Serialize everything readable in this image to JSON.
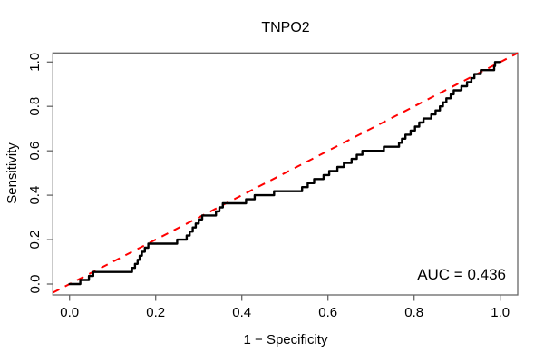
{
  "chart_data": {
    "type": "line",
    "subtype": "ROC step curve",
    "title": "TNPO2",
    "xlabel": "1 − Specificity",
    "ylabel": "Sensitivity",
    "annotation": "AUC = 0.436",
    "auc": 0.436,
    "xlim": [
      0,
      1
    ],
    "ylim": [
      0,
      1
    ],
    "grid": false,
    "legend": "none",
    "x_ticks": [
      "0.0",
      "0.2",
      "0.4",
      "0.6",
      "0.8",
      "1.0"
    ],
    "x_tick_values": [
      0,
      0.2,
      0.4,
      0.6,
      0.8,
      1.0
    ],
    "y_ticks": [
      "0.0",
      "0.2",
      "0.4",
      "0.6",
      "0.8",
      "1.0"
    ],
    "y_tick_values": [
      0,
      0.2,
      0.4,
      0.6,
      0.8,
      1.0
    ],
    "colors": {
      "curve": "#000000",
      "diagonal": "#ff0000",
      "axis": "#666666",
      "text": "#000000",
      "background": "#ffffff"
    },
    "series": [
      {
        "name": "ROC curve",
        "style": "solid-step",
        "color": "#000000",
        "line_width": 2.4,
        "start": [
          0,
          0
        ],
        "end": [
          1,
          1
        ],
        "steps": [
          [
            0.025,
            0.0182
          ],
          [
            0.045,
            0.0364
          ],
          [
            0.055,
            0.0545
          ],
          [
            0.145,
            0.0727
          ],
          [
            0.152,
            0.0909
          ],
          [
            0.158,
            0.1091
          ],
          [
            0.163,
            0.1273
          ],
          [
            0.168,
            0.1455
          ],
          [
            0.175,
            0.1636
          ],
          [
            0.183,
            0.1818
          ],
          [
            0.25,
            0.2
          ],
          [
            0.272,
            0.2182
          ],
          [
            0.279,
            0.2364
          ],
          [
            0.286,
            0.2545
          ],
          [
            0.293,
            0.2727
          ],
          [
            0.3,
            0.2909
          ],
          [
            0.308,
            0.3091
          ],
          [
            0.34,
            0.3273
          ],
          [
            0.348,
            0.3455
          ],
          [
            0.356,
            0.3636
          ],
          [
            0.41,
            0.3818
          ],
          [
            0.43,
            0.4
          ],
          [
            0.475,
            0.4182
          ],
          [
            0.54,
            0.4364
          ],
          [
            0.553,
            0.4545
          ],
          [
            0.568,
            0.4727
          ],
          [
            0.59,
            0.4909
          ],
          [
            0.603,
            0.5091
          ],
          [
            0.622,
            0.5273
          ],
          [
            0.637,
            0.5455
          ],
          [
            0.655,
            0.5636
          ],
          [
            0.667,
            0.5818
          ],
          [
            0.68,
            0.6
          ],
          [
            0.73,
            0.6182
          ],
          [
            0.765,
            0.6364
          ],
          [
            0.772,
            0.6545
          ],
          [
            0.78,
            0.6727
          ],
          [
            0.792,
            0.6909
          ],
          [
            0.802,
            0.7091
          ],
          [
            0.812,
            0.7273
          ],
          [
            0.822,
            0.7455
          ],
          [
            0.84,
            0.7636
          ],
          [
            0.85,
            0.7818
          ],
          [
            0.86,
            0.8
          ],
          [
            0.867,
            0.8182
          ],
          [
            0.875,
            0.8364
          ],
          [
            0.885,
            0.8545
          ],
          [
            0.892,
            0.8727
          ],
          [
            0.91,
            0.8909
          ],
          [
            0.923,
            0.9091
          ],
          [
            0.933,
            0.9273
          ],
          [
            0.94,
            0.9455
          ],
          [
            0.955,
            0.9636
          ],
          [
            0.986,
            0.9818
          ],
          [
            0.988,
            1.0
          ]
        ]
      },
      {
        "name": "Chance diagonal",
        "style": "dashed",
        "color": "#ff0000",
        "line_width": 2,
        "points": [
          [
            0,
            0
          ],
          [
            1,
            1
          ]
        ]
      }
    ]
  }
}
